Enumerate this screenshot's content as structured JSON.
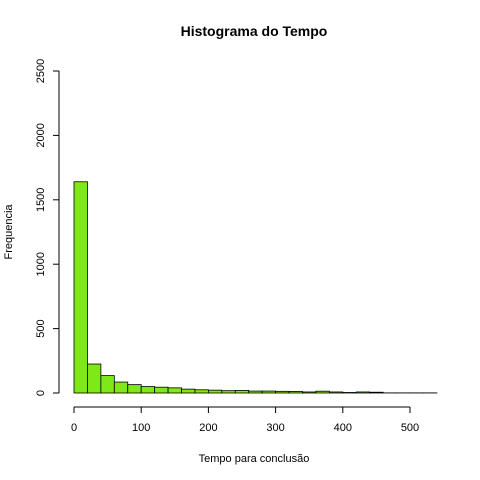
{
  "chart_data": {
    "type": "bar",
    "title": "Histograma do Tempo",
    "xlabel": "Tempo para conclusão",
    "ylabel": "Frequencia",
    "xlim": [
      0,
      540
    ],
    "ylim": [
      0,
      2500
    ],
    "xticks": [
      0,
      100,
      200,
      300,
      400,
      500
    ],
    "yticks": [
      0,
      500,
      1000,
      1500,
      2000,
      2500
    ],
    "bin_width": 20,
    "bins_start": [
      0,
      20,
      40,
      60,
      80,
      100,
      120,
      140,
      160,
      180,
      200,
      220,
      240,
      260,
      280,
      300,
      320,
      340,
      360,
      380,
      400,
      420,
      440,
      460,
      480,
      500,
      520
    ],
    "values": [
      1640,
      225,
      135,
      85,
      65,
      50,
      45,
      40,
      30,
      25,
      22,
      18,
      20,
      15,
      15,
      13,
      12,
      8,
      14,
      8,
      4,
      8,
      6,
      1,
      1,
      1,
      1
    ],
    "bar_color": "#7FE817",
    "grid": false
  }
}
